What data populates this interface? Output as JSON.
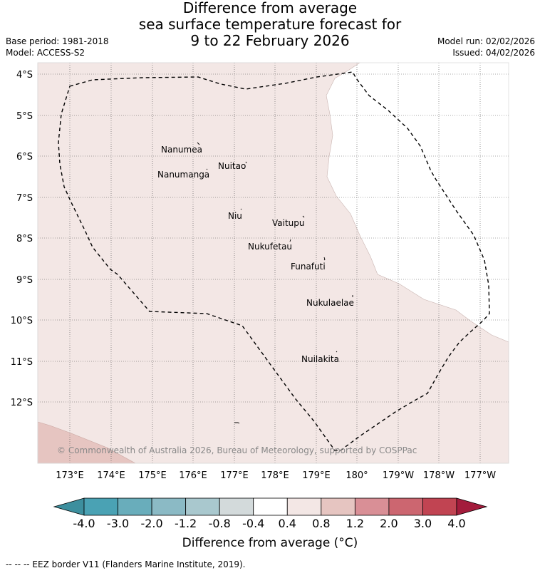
{
  "title": {
    "line1": "Difference from average",
    "line2": "sea surface temperature forecast for",
    "line3": "9 to 22 February 2026"
  },
  "meta": {
    "base_period": "Base period: 1981-2018",
    "model": "Model: ACCESS-S2",
    "model_run": "Model run: 02/02/2026",
    "issued": "Issued: 04/02/2026"
  },
  "map": {
    "lat_labels": [
      "4°S",
      "5°S",
      "6°S",
      "7°S",
      "8°S",
      "9°S",
      "10°S",
      "11°S",
      "12°S"
    ],
    "lon_labels": [
      "173°E",
      "174°E",
      "175°E",
      "176°E",
      "177°E",
      "178°E",
      "179°E",
      "180°",
      "179°W",
      "178°W",
      "177°W"
    ],
    "islands": [
      "Nanumea",
      "Nuitao",
      "Nanumanga",
      "Niu",
      "Vaitupu",
      "Nukufetau",
      "Funafuti",
      "Nukulaelae",
      "Nuilakita"
    ],
    "copyright": "© Commonwealth of Australia 2026, Bureau of Meteorology, supported by COSPPac",
    "colors": {
      "band_0_4_to_0_8": "#f3e7e5",
      "band_0_8_to_1_2": "#e6c5c1",
      "neutral": "#ffffff",
      "eez_line": "#000000"
    }
  },
  "colorbar": {
    "label": "Difference from average (°C)",
    "ticks": [
      "-4.0",
      "-3.0",
      "-2.0",
      "-1.2",
      "-0.8",
      "-0.4",
      "0.4",
      "0.8",
      "1.2",
      "2.0",
      "3.0",
      "4.0"
    ],
    "colors": [
      "#3d8f9e",
      "#4aa2b4",
      "#69adbb",
      "#8bbac5",
      "#a9c8ce",
      "#d3dadb",
      "#ffffff",
      "#f3e7e5",
      "#e6c5c1",
      "#d98f96",
      "#cc6670",
      "#c14452",
      "#a31c3c"
    ]
  },
  "footer": "--  --  -- EEZ border V11 (Flanders Marine Institute, 2019)."
}
